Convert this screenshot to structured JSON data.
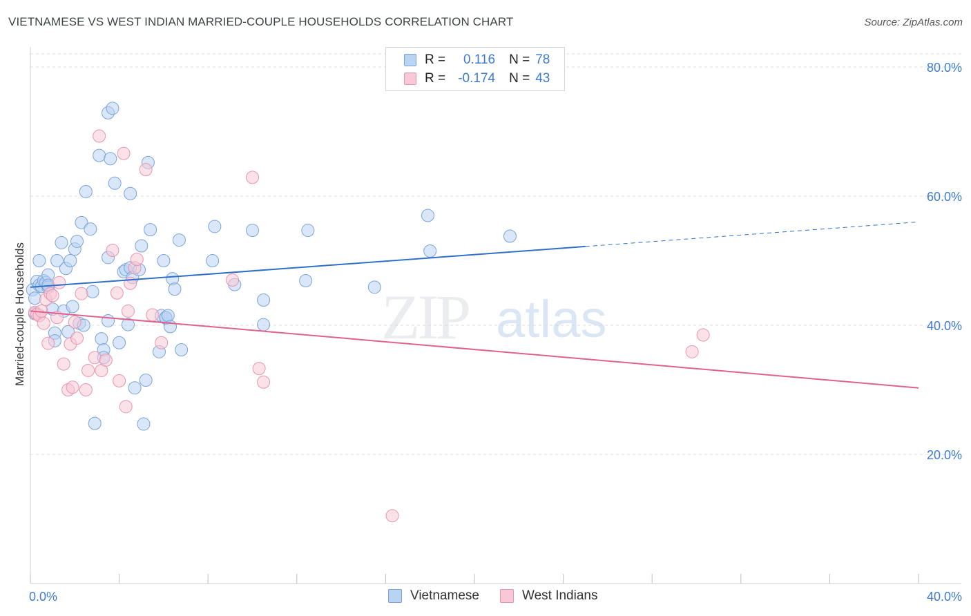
{
  "title": "VIETNAMESE VS WEST INDIAN MARRIED-COUPLE HOUSEHOLDS CORRELATION CHART",
  "source": "Source: ZipAtlas.com",
  "watermark": {
    "zip": "ZIP",
    "atlas": "atlas"
  },
  "legend": {
    "r_label": "R =",
    "n_label": "N =",
    "vietnamese": {
      "r": "0.116",
      "n": "78"
    },
    "west_indians": {
      "r": "-0.174",
      "n": "43"
    }
  },
  "colors": {
    "blue_fill": "#b9d3f2",
    "blue_stroke": "#7aa3d9",
    "blue_line": "#2f6fcb",
    "pink_fill": "#f8c8d6",
    "pink_stroke": "#e795ae",
    "pink_line": "#e0608e",
    "tick_text": "#3d7bd1",
    "grid": "#dcdcdc"
  },
  "chart_data": {
    "type": "scatter",
    "title": "VIETNAMESE VS WEST INDIAN MARRIED-COUPLE HOUSEHOLDS CORRELATION CHART",
    "xlabel": "",
    "ylabel": "Married-couple Households",
    "xlim": [
      0,
      40
    ],
    "ylim": [
      0,
      82
    ],
    "x_tick_labels": [
      {
        "value": 0,
        "label": "0.0%"
      },
      {
        "value": 40,
        "label": "40.0%"
      }
    ],
    "y_tick_labels": [
      {
        "value": 80,
        "label": "80.0%"
      },
      {
        "value": 60,
        "label": "60.0%"
      },
      {
        "value": 40,
        "label": "40.0%"
      },
      {
        "value": 20,
        "label": "20.0%"
      }
    ],
    "series": [
      {
        "name": "Vietnamese",
        "color": "blue",
        "trend": {
          "x_start": 0,
          "y_start": 45.9,
          "x_solid_end": 25,
          "y_solid_end": 52.2,
          "x_end": 40,
          "y_end": 56.0
        },
        "points": [
          [
            0.1,
            45.5
          ],
          [
            0.2,
            44.2
          ],
          [
            0.2,
            41.8
          ],
          [
            0.3,
            46.8
          ],
          [
            0.4,
            50.0
          ],
          [
            0.4,
            46.2
          ],
          [
            0.5,
            46.0
          ],
          [
            0.6,
            46.9
          ],
          [
            0.7,
            46.6
          ],
          [
            0.8,
            45.9
          ],
          [
            0.8,
            47.8
          ],
          [
            0.8,
            46.2
          ],
          [
            1.0,
            42.5
          ],
          [
            1.1,
            38.8
          ],
          [
            1.1,
            37.6
          ],
          [
            1.2,
            50.0
          ],
          [
            1.4,
            52.8
          ],
          [
            1.5,
            42.2
          ],
          [
            1.6,
            48.8
          ],
          [
            1.7,
            39.0
          ],
          [
            1.8,
            50.0
          ],
          [
            1.9,
            42.9
          ],
          [
            2.0,
            51.8
          ],
          [
            2.1,
            53.0
          ],
          [
            2.2,
            40.3
          ],
          [
            2.3,
            55.9
          ],
          [
            2.4,
            40.0
          ],
          [
            2.5,
            60.7
          ],
          [
            2.7,
            54.9
          ],
          [
            2.8,
            45.2
          ],
          [
            2.9,
            24.8
          ],
          [
            3.1,
            66.3
          ],
          [
            3.2,
            37.9
          ],
          [
            3.3,
            36.2
          ],
          [
            3.3,
            35.0
          ],
          [
            3.5,
            40.7
          ],
          [
            3.5,
            50.5
          ],
          [
            3.5,
            72.9
          ],
          [
            3.6,
            65.8
          ],
          [
            3.7,
            73.6
          ],
          [
            3.8,
            62.0
          ],
          [
            4.0,
            37.3
          ],
          [
            4.2,
            48.3
          ],
          [
            4.3,
            48.6
          ],
          [
            4.4,
            40.1
          ],
          [
            4.5,
            48.9
          ],
          [
            4.5,
            60.4
          ],
          [
            4.6,
            47.4
          ],
          [
            4.7,
            30.3
          ],
          [
            4.9,
            48.6
          ],
          [
            5.0,
            52.3
          ],
          [
            5.1,
            24.7
          ],
          [
            5.2,
            31.5
          ],
          [
            5.3,
            65.2
          ],
          [
            5.4,
            54.8
          ],
          [
            5.8,
            35.9
          ],
          [
            5.9,
            41.5
          ],
          [
            6.0,
            50.0
          ],
          [
            6.1,
            41.1
          ],
          [
            6.1,
            41.2
          ],
          [
            6.2,
            41.5
          ],
          [
            6.3,
            39.8
          ],
          [
            6.4,
            47.2
          ],
          [
            6.5,
            45.6
          ],
          [
            6.7,
            53.2
          ],
          [
            6.8,
            36.2
          ],
          [
            8.2,
            50.0
          ],
          [
            8.3,
            55.3
          ],
          [
            9.2,
            46.3
          ],
          [
            10.0,
            54.7
          ],
          [
            10.5,
            43.9
          ],
          [
            10.5,
            40.1
          ],
          [
            12.5,
            54.7
          ],
          [
            12.4,
            46.9
          ],
          [
            15.5,
            45.9
          ],
          [
            17.9,
            57.0
          ],
          [
            18.0,
            51.5
          ],
          [
            21.6,
            53.8
          ]
        ]
      },
      {
        "name": "West Indians",
        "color": "pink",
        "trend": {
          "x_start": 0,
          "y_start": 42.2,
          "x_solid_end": 40,
          "y_solid_end": 30.3,
          "x_end": 40,
          "y_end": 30.3
        },
        "points": [
          [
            0.2,
            42.0
          ],
          [
            0.3,
            41.7
          ],
          [
            0.4,
            41.5
          ],
          [
            0.5,
            42.2
          ],
          [
            0.6,
            40.3
          ],
          [
            0.7,
            44.0
          ],
          [
            0.8,
            37.2
          ],
          [
            0.9,
            44.9
          ],
          [
            1.0,
            44.6
          ],
          [
            1.2,
            41.2
          ],
          [
            1.3,
            46.6
          ],
          [
            1.5,
            34.0
          ],
          [
            1.7,
            30.0
          ],
          [
            1.8,
            37.1
          ],
          [
            1.9,
            30.4
          ],
          [
            2.0,
            40.5
          ],
          [
            2.1,
            38.0
          ],
          [
            2.3,
            44.9
          ],
          [
            2.5,
            30.0
          ],
          [
            2.6,
            33.0
          ],
          [
            2.9,
            35.0
          ],
          [
            3.1,
            69.3
          ],
          [
            3.2,
            33.0
          ],
          [
            3.4,
            34.6
          ],
          [
            3.7,
            51.6
          ],
          [
            3.9,
            45.0
          ],
          [
            4.0,
            31.4
          ],
          [
            4.2,
            66.6
          ],
          [
            4.3,
            27.4
          ],
          [
            4.4,
            42.2
          ],
          [
            4.5,
            46.5
          ],
          [
            4.7,
            48.9
          ],
          [
            4.8,
            50.2
          ],
          [
            5.2,
            64.1
          ],
          [
            5.5,
            41.6
          ],
          [
            5.9,
            37.3
          ],
          [
            9.1,
            47.0
          ],
          [
            10.0,
            62.9
          ],
          [
            10.3,
            33.3
          ],
          [
            10.5,
            31.2
          ],
          [
            16.3,
            10.5
          ],
          [
            29.8,
            35.9
          ],
          [
            30.3,
            38.5
          ]
        ]
      }
    ]
  }
}
